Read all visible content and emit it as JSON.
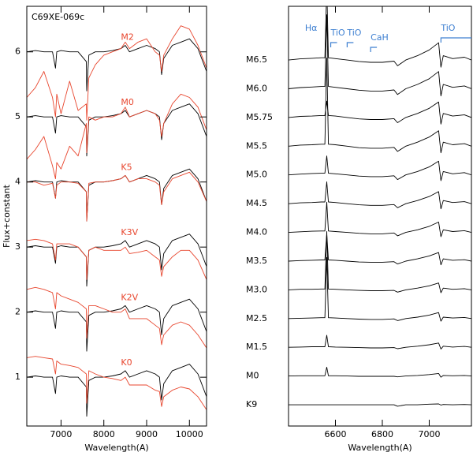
{
  "chart_data": [
    {
      "type": "line",
      "target_name": "C69XE-069c",
      "target_color": "#000000",
      "xlabel": "Wavelength(A)",
      "ylabel": "Flux+constant",
      "xlim": [
        6200,
        10400
      ],
      "xticks": [
        7000,
        8000,
        9000,
        10000
      ],
      "ylim": [
        0.25,
        6.7
      ],
      "yticks": [
        1,
        2,
        3,
        4,
        5,
        6
      ],
      "x": [
        6200,
        6400,
        6600,
        6800,
        6870,
        6900,
        7000,
        7200,
        7400,
        7590,
        7600,
        7650,
        7800,
        8000,
        8200,
        8400,
        8500,
        8600,
        8800,
        9000,
        9200,
        9300,
        9350,
        9400,
        9600,
        9800,
        10000,
        10200,
        10400
      ],
      "series": [
        {
          "name": "M2",
          "color": "#e8462e",
          "values": [
            5.3,
            5.45,
            5.7,
            5.3,
            5.0,
            5.35,
            5.05,
            5.55,
            5.1,
            5.2,
            4.95,
            5.6,
            5.8,
            5.95,
            6.0,
            6.05,
            6.15,
            6.05,
            6.15,
            6.2,
            6.0,
            5.95,
            5.7,
            5.95,
            6.2,
            6.4,
            6.35,
            6.1,
            5.75
          ],
          "target_values": [
            6,
            6.02,
            6,
            6,
            5.75,
            6,
            6.02,
            6,
            6,
            5.85,
            5.4,
            5.95,
            6,
            6,
            6.02,
            6.05,
            6.1,
            6,
            6.05,
            6.1,
            6.05,
            6,
            5.65,
            5.9,
            6.1,
            6.15,
            6.2,
            6.05,
            5.7
          ]
        },
        {
          "name": "M0",
          "color": "#e8462e",
          "values": [
            4.35,
            4.5,
            4.7,
            4.25,
            4.05,
            4.3,
            4.2,
            4.55,
            4.4,
            4.9,
            4.45,
            5.0,
            4.95,
            5.0,
            5.0,
            5.05,
            5.15,
            5.0,
            5.05,
            5.1,
            5.05,
            4.95,
            4.7,
            4.9,
            5.2,
            5.35,
            5.3,
            5.15,
            4.8
          ],
          "target_values": [
            5,
            5.02,
            5,
            5,
            4.75,
            5,
            5.02,
            5,
            5,
            4.85,
            4.4,
            4.95,
            5,
            5,
            5.02,
            5.05,
            5.1,
            5,
            5.05,
            5.1,
            5.05,
            5,
            4.65,
            4.9,
            5.1,
            5.15,
            5.2,
            5.05,
            4.7
          ]
        },
        {
          "name": "K5",
          "color": "#e8462e",
          "values": [
            4.0,
            4.0,
            3.95,
            3.98,
            3.75,
            3.95,
            4.0,
            4.0,
            3.98,
            3.85,
            3.4,
            3.98,
            4.0,
            4.0,
            4.02,
            4.05,
            4.1,
            4.0,
            4.05,
            4.05,
            4.0,
            3.95,
            3.65,
            3.85,
            4.05,
            4.1,
            4.15,
            4.0,
            3.7
          ],
          "target_values": [
            4,
            4.02,
            4,
            4,
            3.75,
            4,
            4.02,
            4,
            4,
            3.85,
            3.4,
            3.95,
            4,
            4,
            4.02,
            4.05,
            4.1,
            4,
            4.05,
            4.1,
            4.05,
            4,
            3.65,
            3.9,
            4.1,
            4.15,
            4.2,
            4.05,
            3.7
          ]
        },
        {
          "name": "K3V",
          "color": "#e8462e",
          "values": [
            3.1,
            3.12,
            3.1,
            3.05,
            2.8,
            3.05,
            3.05,
            3.05,
            3.0,
            2.85,
            2.5,
            2.95,
            3.0,
            2.95,
            2.95,
            2.95,
            3.0,
            2.9,
            2.92,
            2.95,
            2.85,
            2.8,
            2.55,
            2.7,
            2.85,
            2.95,
            2.95,
            2.8,
            2.5
          ],
          "target_values": [
            3,
            3.02,
            3,
            3,
            2.75,
            3,
            3.02,
            3,
            3,
            2.85,
            2.4,
            2.95,
            3,
            3,
            3.02,
            3.05,
            3.1,
            3,
            3.05,
            3.1,
            3.05,
            3,
            2.65,
            2.9,
            3.1,
            3.15,
            3.2,
            3.05,
            2.7
          ]
        },
        {
          "name": "K2V",
          "color": "#e8462e",
          "values": [
            2.35,
            2.38,
            2.35,
            2.3,
            2.05,
            2.3,
            2.25,
            2.2,
            2.15,
            2.05,
            1.6,
            2.1,
            2.1,
            2.05,
            2.0,
            2.0,
            2.05,
            1.9,
            1.9,
            1.9,
            1.8,
            1.75,
            1.5,
            1.65,
            1.8,
            1.85,
            1.8,
            1.65,
            1.45
          ],
          "target_values": [
            2,
            2.02,
            2,
            2,
            1.75,
            2,
            2.02,
            2,
            2,
            1.85,
            1.4,
            1.95,
            2,
            2,
            2.02,
            2.05,
            2.1,
            2,
            2.05,
            2.1,
            2.05,
            2,
            1.65,
            1.9,
            2.1,
            2.15,
            2.2,
            2.05,
            1.7
          ]
        },
        {
          "name": "K0",
          "color": "#e8462e",
          "values": [
            1.3,
            1.32,
            1.3,
            1.28,
            1.05,
            1.25,
            1.2,
            1.18,
            1.15,
            1.05,
            0.6,
            1.1,
            1.05,
            1.0,
            0.98,
            0.95,
            1.0,
            0.88,
            0.88,
            0.88,
            0.8,
            0.78,
            0.55,
            0.7,
            0.8,
            0.85,
            0.82,
            0.7,
            0.5
          ],
          "target_values": [
            1,
            1.02,
            1,
            1,
            0.75,
            1,
            1.02,
            1,
            1,
            0.85,
            0.4,
            0.95,
            1,
            1,
            1.02,
            1.05,
            1.1,
            1,
            1.05,
            1.1,
            1.05,
            1,
            0.65,
            0.9,
            1.1,
            1.15,
            1.2,
            1.05,
            0.7
          ]
        }
      ]
    },
    {
      "type": "line",
      "xlabel": "Wavelength(A)",
      "xlim": [
        6400,
        7180
      ],
      "xticks": [
        6600,
        6800,
        7000
      ],
      "ylim": [
        -0.74,
        13.87
      ],
      "annotation_color": "#3d7fd1",
      "annotations": [
        {
          "text": "Hα",
          "x": 6470
        },
        {
          "text": "TiO",
          "x": 6580
        },
        {
          "text": "TiO",
          "x": 6650
        },
        {
          "text": "CaH",
          "x": 6750
        },
        {
          "text": "TiO",
          "x": 7050
        }
      ],
      "x": [
        6400,
        6450,
        6500,
        6540,
        6555,
        6563,
        6570,
        6600,
        6650,
        6700,
        6750,
        6800,
        6850,
        6865,
        6900,
        6950,
        7000,
        7040,
        7050,
        7060,
        7100,
        7150,
        7180
      ],
      "series": [
        {
          "name": "M6.5",
          "color": "#000000",
          "values": [
            12,
            12.04,
            12.06,
            12.08,
            12.08,
            14.58,
            12.08,
            12.05,
            12,
            11.95,
            11.92,
            11.92,
            11.96,
            11.8,
            12,
            12.15,
            12.35,
            12.6,
            11.75,
            12.15,
            12.05,
            12.1,
            12
          ]
        },
        {
          "name": "M6.0",
          "color": "#000000",
          "values": [
            11,
            11.04,
            11.06,
            11.08,
            11.08,
            13.58,
            11.08,
            11.05,
            11,
            10.95,
            10.92,
            10.92,
            10.96,
            10.8,
            11,
            11.15,
            11.35,
            11.6,
            10.75,
            11.15,
            11.05,
            11.1,
            11
          ]
        },
        {
          "name": "M5.75",
          "color": "#000000",
          "values": [
            10,
            10.04,
            10.05,
            10.07,
            10.07,
            10.57,
            10.07,
            10.05,
            10,
            9.95,
            9.93,
            9.93,
            9.96,
            9.82,
            10,
            10.14,
            10.32,
            10.54,
            9.77,
            10.14,
            10.05,
            10.09,
            10
          ]
        },
        {
          "name": "M5.5",
          "color": "#000000",
          "values": [
            9,
            9.04,
            9.05,
            9.07,
            9.07,
            12.07,
            9.07,
            9.05,
            9,
            8.95,
            8.93,
            8.93,
            8.96,
            8.82,
            9,
            9.14,
            9.32,
            9.54,
            8.77,
            9.14,
            9.05,
            9.09,
            9
          ]
        },
        {
          "name": "M5.0",
          "color": "#000000",
          "values": [
            8,
            8.03,
            8.05,
            8.06,
            8.06,
            8.66,
            8.06,
            8.04,
            8,
            7.96,
            7.94,
            7.94,
            7.97,
            7.84,
            8,
            8.12,
            8.28,
            8.48,
            7.8,
            8.12,
            8.04,
            8.08,
            8
          ]
        },
        {
          "name": "M4.5",
          "color": "#000000",
          "values": [
            7,
            7.03,
            7.04,
            7.06,
            7.06,
            7.76,
            7.06,
            7.04,
            7,
            6.96,
            6.94,
            6.94,
            6.97,
            6.86,
            7,
            7.11,
            7.25,
            7.42,
            6.82,
            7.11,
            7.04,
            7.07,
            7
          ]
        },
        {
          "name": "M4.0",
          "color": "#000000",
          "values": [
            6,
            6.02,
            6.04,
            6.05,
            6.05,
            7.05,
            6.05,
            6.03,
            6,
            5.97,
            5.95,
            5.95,
            5.98,
            5.88,
            6,
            6.09,
            6.21,
            6.36,
            5.85,
            6.09,
            6.03,
            6.06,
            6
          ]
        },
        {
          "name": "M3.5",
          "color": "#000000",
          "values": [
            5,
            5.02,
            5.03,
            5.04,
            5.04,
            5.94,
            5.04,
            5.03,
            5,
            4.97,
            4.96,
            4.96,
            4.98,
            4.9,
            5,
            5.08,
            5.18,
            5.3,
            4.87,
            5.08,
            5.03,
            5.05,
            5
          ]
        },
        {
          "name": "M3.0",
          "color": "#000000",
          "values": [
            4,
            4.02,
            4.02,
            4.03,
            4.03,
            6.03,
            4.03,
            4.02,
            4,
            3.98,
            3.97,
            3.97,
            3.98,
            3.92,
            4,
            4.06,
            4.14,
            4.24,
            3.9,
            4.06,
            4.02,
            4.04,
            4
          ]
        },
        {
          "name": "M2.5",
          "color": "#000000",
          "values": [
            3,
            3.01,
            3.02,
            3.03,
            3.03,
            5.13,
            3.03,
            3.02,
            3,
            2.98,
            2.97,
            2.97,
            2.99,
            2.93,
            3,
            3.05,
            3.12,
            3.21,
            2.91,
            3.05,
            3.02,
            3.04,
            3
          ]
        },
        {
          "name": "M1.5",
          "color": "#000000",
          "values": [
            2,
            2.01,
            2.02,
            2.02,
            2.02,
            2.42,
            2.02,
            2.01,
            2,
            1.99,
            1.98,
            1.98,
            1.99,
            1.95,
            2,
            2.04,
            2.09,
            2.15,
            1.94,
            2.04,
            2.01,
            2.03,
            2
          ]
        },
        {
          "name": "M0",
          "color": "#000000",
          "values": [
            1,
            1.01,
            1.01,
            1.01,
            1.01,
            1.31,
            1.01,
            1.01,
            1,
            0.99,
            0.99,
            0.99,
            0.99,
            0.97,
            1,
            1.02,
            1.05,
            1.09,
            0.96,
            1.02,
            1.01,
            1.02,
            1
          ]
        },
        {
          "name": "K9",
          "color": "#000000",
          "values": [
            0,
            0,
            0,
            0,
            0,
            0,
            0,
            0,
            0,
            0,
            0,
            0,
            0,
            -0.05,
            0,
            0,
            0.02,
            0.03,
            -0.01,
            0.01,
            0,
            0.01,
            0
          ]
        }
      ]
    }
  ]
}
